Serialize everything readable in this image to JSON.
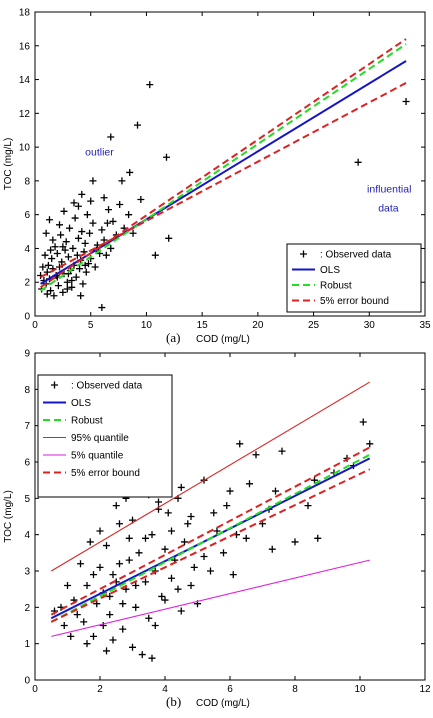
{
  "chart_data": [
    {
      "type": "scatter",
      "panel_label": "(a)",
      "xlabel": "COD (mg/L)",
      "ylabel": "TOC (mg/L)",
      "xlim": [
        0,
        35
      ],
      "ylim": [
        0,
        18
      ],
      "xticks": [
        0,
        5,
        10,
        15,
        20,
        25,
        30,
        35
      ],
      "yticks": [
        0,
        2,
        4,
        6,
        8,
        10,
        12,
        14,
        16,
        18
      ],
      "legend_position": "bottom-right",
      "annotations": [
        {
          "text": "outlier",
          "x": 4.5,
          "y": 9.5
        },
        {
          "text": "influential",
          "x": 29.8,
          "y": 7.3
        },
        {
          "text": "data",
          "x": 30.8,
          "y": 6.2
        }
      ],
      "series": [
        {
          "name": ": Observed data",
          "style": "marker",
          "color": "#000000",
          "points": [
            [
              10.3,
              13.7
            ],
            [
              9.2,
              11.3
            ],
            [
              6.8,
              10.6
            ],
            [
              11.8,
              9.4
            ],
            [
              8.5,
              8.5
            ],
            [
              5.2,
              8.0
            ],
            [
              7.8,
              8.0
            ],
            [
              4.2,
              7.2
            ],
            [
              3.5,
              6.7
            ],
            [
              6.2,
              7.0
            ],
            [
              9.5,
              6.9
            ],
            [
              12.0,
              4.6
            ],
            [
              10.8,
              3.6
            ],
            [
              6.0,
              0.5
            ],
            [
              33.3,
              12.7
            ],
            [
              29.0,
              9.1
            ],
            [
              0.6,
              1.6
            ],
            [
              0.8,
              2.1
            ],
            [
              1.0,
              1.9
            ],
            [
              1.1,
              2.6
            ],
            [
              1.2,
              3.0
            ],
            [
              1.3,
              2.2
            ],
            [
              1.4,
              1.5
            ],
            [
              1.5,
              3.4
            ],
            [
              1.6,
              2.8
            ],
            [
              1.7,
              1.2
            ],
            [
              1.8,
              4.1
            ],
            [
              1.9,
              2.4
            ],
            [
              2.0,
              3.7
            ],
            [
              2.1,
              1.8
            ],
            [
              2.2,
              2.9
            ],
            [
              2.3,
              4.8
            ],
            [
              2.4,
              3.2
            ],
            [
              2.5,
              1.4
            ],
            [
              2.6,
              2.5
            ],
            [
              2.7,
              3.9
            ],
            [
              2.8,
              4.4
            ],
            [
              2.9,
              2.0
            ],
            [
              3.0,
              3.5
            ],
            [
              3.1,
              5.2
            ],
            [
              3.2,
              2.7
            ],
            [
              3.3,
              1.7
            ],
            [
              3.4,
              4.0
            ],
            [
              3.5,
              3.0
            ],
            [
              3.6,
              5.8
            ],
            [
              3.7,
              2.3
            ],
            [
              3.8,
              3.6
            ],
            [
              3.9,
              4.6
            ],
            [
              4.0,
              2.8
            ],
            [
              4.1,
              3.3
            ],
            [
              4.2,
              5.0
            ],
            [
              4.3,
              1.9
            ],
            [
              4.4,
              3.8
            ],
            [
              4.5,
              4.3
            ],
            [
              4.6,
              2.6
            ],
            [
              4.7,
              6.0
            ],
            [
              4.8,
              3.1
            ],
            [
              4.9,
              4.9
            ],
            [
              5.0,
              3.4
            ],
            [
              5.2,
              5.5
            ],
            [
              5.4,
              2.9
            ],
            [
              5.6,
              4.2
            ],
            [
              5.8,
              3.7
            ],
            [
              6.0,
              5.1
            ],
            [
              6.2,
              4.5
            ],
            [
              6.4,
              3.6
            ],
            [
              6.6,
              6.3
            ],
            [
              6.8,
              4.0
            ],
            [
              7.0,
              5.6
            ],
            [
              7.3,
              4.8
            ],
            [
              7.6,
              6.6
            ],
            [
              8.0,
              5.2
            ],
            [
              8.4,
              6.0
            ],
            [
              8.8,
              4.9
            ],
            [
              1.0,
              4.9
            ],
            [
              1.3,
              5.7
            ],
            [
              0.9,
              3.6
            ],
            [
              2.6,
              6.2
            ],
            [
              3.9,
              6.5
            ],
            [
              5.0,
              6.8
            ],
            [
              2.2,
              5.4
            ],
            [
              1.6,
              4.5
            ],
            [
              0.7,
              2.9
            ],
            [
              1.1,
              1.3
            ],
            [
              2.9,
              1.6
            ],
            [
              4.1,
              1.2
            ],
            [
              3.3,
              2.1
            ],
            [
              2.0,
              2.3
            ],
            [
              1.4,
              3.9
            ],
            [
              0.5,
              2.4
            ],
            [
              2.5,
              4.1
            ],
            [
              3.0,
              2.5
            ],
            [
              4.5,
              3.0
            ],
            [
              5.5,
              3.9
            ],
            [
              6.5,
              5.5
            ]
          ]
        },
        {
          "name": "OLS",
          "style": "solid",
          "color": "#1515c8",
          "from": [
            0.5,
            1.9
          ],
          "to": [
            33.3,
            15.1
          ]
        },
        {
          "name": "Robust",
          "style": "dashed",
          "color": "#22dd22",
          "from": [
            0.5,
            1.5
          ],
          "to": [
            33.3,
            16.1
          ]
        },
        {
          "name": "5% error bound",
          "style": "dashed",
          "color": "#dd2222",
          "lines": [
            [
              [
                0.5,
                1.7
              ],
              [
                33.3,
                16.4
              ]
            ],
            [
              [
                0.5,
                2.3
              ],
              [
                33.3,
                13.8
              ]
            ]
          ]
        }
      ]
    },
    {
      "type": "scatter",
      "panel_label": "(b)",
      "xlabel": "COD (mg/L)",
      "ylabel": "TOC (mg/L)",
      "xlim": [
        0,
        12
      ],
      "ylim": [
        0,
        9
      ],
      "xticks": [
        0,
        2,
        4,
        6,
        8,
        10,
        12
      ],
      "yticks": [
        0,
        1,
        2,
        3,
        4,
        5,
        6,
        7,
        8,
        9
      ],
      "legend_position": "top-left",
      "series": [
        {
          "name": ": Observed data",
          "style": "marker",
          "color": "#000000",
          "points": [
            [
              10.1,
              7.1
            ],
            [
              10.3,
              6.5
            ],
            [
              9.6,
              6.1
            ],
            [
              9.8,
              5.9
            ],
            [
              9.2,
              5.7
            ],
            [
              8.6,
              5.5
            ],
            [
              8.7,
              3.9
            ],
            [
              8.4,
              4.8
            ],
            [
              7.6,
              6.3
            ],
            [
              7.4,
              5.2
            ],
            [
              7.2,
              4.7
            ],
            [
              7.0,
              4.3
            ],
            [
              6.3,
              6.5
            ],
            [
              6.8,
              6.2
            ],
            [
              6.0,
              5.2
            ],
            [
              6.5,
              3.9
            ],
            [
              5.8,
              3.5
            ],
            [
              5.2,
              5.5
            ],
            [
              5.5,
              4.6
            ],
            [
              5.0,
              2.1
            ],
            [
              5.4,
              3.0
            ],
            [
              6.1,
              2.9
            ],
            [
              7.3,
              3.6
            ],
            [
              8.0,
              3.8
            ],
            [
              0.6,
              1.9
            ],
            [
              0.9,
              1.5
            ],
            [
              1.2,
              2.2
            ],
            [
              1.4,
              3.2
            ],
            [
              1.6,
              2.6
            ],
            [
              1.8,
              1.2
            ],
            [
              2.0,
              4.1
            ],
            [
              2.1,
              2.4
            ],
            [
              2.2,
              3.7
            ],
            [
              2.3,
              1.8
            ],
            [
              2.4,
              2.9
            ],
            [
              2.5,
              4.8
            ],
            [
              2.6,
              3.2
            ],
            [
              2.7,
              1.4
            ],
            [
              2.8,
              2.5
            ],
            [
              2.9,
              3.9
            ],
            [
              3.0,
              4.4
            ],
            [
              3.1,
              2.0
            ],
            [
              3.2,
              3.5
            ],
            [
              3.3,
              5.2
            ],
            [
              3.4,
              2.7
            ],
            [
              3.5,
              1.7
            ],
            [
              3.6,
              4.0
            ],
            [
              3.7,
              3.0
            ],
            [
              3.8,
              4.7
            ],
            [
              3.9,
              2.3
            ],
            [
              4.0,
              3.6
            ],
            [
              4.1,
              4.6
            ],
            [
              4.2,
              2.8
            ],
            [
              4.3,
              3.3
            ],
            [
              4.4,
              5.0
            ],
            [
              4.5,
              1.9
            ],
            [
              4.6,
              3.8
            ],
            [
              4.7,
              4.3
            ],
            [
              4.8,
              2.6
            ],
            [
              4.9,
              3.1
            ],
            [
              1.5,
              1.6
            ],
            [
              1.9,
              2.1
            ],
            [
              2.3,
              2.3
            ],
            [
              2.0,
              3.1
            ],
            [
              1.7,
              3.8
            ],
            [
              2.6,
              4.3
            ],
            [
              3.0,
              0.9
            ],
            [
              3.3,
              0.7
            ],
            [
              3.6,
              0.6
            ],
            [
              2.2,
              0.8
            ],
            [
              1.1,
              1.2
            ],
            [
              1.3,
              1.8
            ],
            [
              2.8,
              5.0
            ],
            [
              3.5,
              5.1
            ],
            [
              4.1,
              5.7
            ],
            [
              4.5,
              5.3
            ],
            [
              3.8,
              4.9
            ],
            [
              1.0,
              2.6
            ],
            [
              0.8,
              2.0
            ],
            [
              2.5,
              2.7
            ],
            [
              2.9,
              3.3
            ],
            [
              3.4,
              3.9
            ],
            [
              4.2,
              4.1
            ],
            [
              4.8,
              4.5
            ],
            [
              5.2,
              3.4
            ],
            [
              5.6,
              4.1
            ],
            [
              5.9,
              4.8
            ],
            [
              6.2,
              4.0
            ],
            [
              6.6,
              5.4
            ],
            [
              1.8,
              2.9
            ],
            [
              2.1,
              1.5
            ],
            [
              2.7,
              2.1
            ],
            [
              3.1,
              2.6
            ],
            [
              3.7,
              1.5
            ],
            [
              4.0,
              2.2
            ],
            [
              4.4,
              2.5
            ],
            [
              2.4,
              1.1
            ],
            [
              1.6,
              1.0
            ]
          ]
        },
        {
          "name": "OLS",
          "style": "solid",
          "color": "#1515c8",
          "from": [
            0.5,
            1.7
          ],
          "to": [
            10.3,
            6.1
          ]
        },
        {
          "name": "Robust",
          "style": "dashed",
          "color": "#22dd22",
          "from": [
            0.5,
            1.6
          ],
          "to": [
            10.3,
            6.2
          ]
        },
        {
          "name": "95% quantile",
          "style": "solid-thin",
          "color": "#dd2222",
          "from": [
            0.5,
            3.0
          ],
          "to": [
            10.3,
            8.2
          ]
        },
        {
          "name": "5% quantile",
          "style": "solid-thin",
          "color": "#e01ee0",
          "from": [
            0.5,
            1.2
          ],
          "to": [
            10.3,
            3.3
          ]
        },
        {
          "name": "5% error bound",
          "style": "dashed",
          "color": "#dd2222",
          "lines": [
            [
              [
                0.5,
                1.8
              ],
              [
                10.3,
                6.4
              ]
            ],
            [
              [
                0.5,
                1.6
              ],
              [
                10.3,
                5.8
              ]
            ]
          ]
        }
      ]
    }
  ]
}
